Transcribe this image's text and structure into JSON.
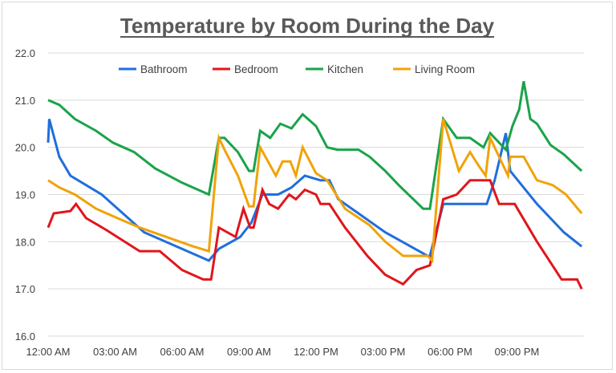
{
  "chart_data": {
    "type": "line",
    "title": "Temperature by Room During the Day",
    "xlabel": "",
    "ylabel": "",
    "ylim": [
      16.0,
      22.0
    ],
    "yticks": [
      "16.0",
      "17.0",
      "18.0",
      "19.0",
      "20.0",
      "21.0",
      "22.0"
    ],
    "xlim": [
      "00:00",
      "24:00"
    ],
    "xticks": [
      "12:00 AM",
      "03:00 AM",
      "06:00 AM",
      "09:00 AM",
      "12:00 PM",
      "03:00 PM",
      "06:00 PM",
      "09:00 PM"
    ],
    "grid": true,
    "legend_position": "top",
    "series": [
      {
        "name": "Bathroom",
        "color": "#1F6FDB",
        "points": [
          [
            "00:00",
            20.1
          ],
          [
            "00:03",
            20.6
          ],
          [
            "00:30",
            19.8
          ],
          [
            "01:00",
            19.4
          ],
          [
            "02:24",
            19.0
          ],
          [
            "04:18",
            18.2
          ],
          [
            "07:12",
            17.6
          ],
          [
            "07:39",
            17.85
          ],
          [
            "08:36",
            18.1
          ],
          [
            "09:06",
            18.4
          ],
          [
            "09:36",
            19.0
          ],
          [
            "10:18",
            19.0
          ],
          [
            "10:54",
            19.15
          ],
          [
            "11:30",
            19.4
          ],
          [
            "12:12",
            19.3
          ],
          [
            "12:36",
            19.3
          ],
          [
            "13:00",
            18.9
          ],
          [
            "13:54",
            18.6
          ],
          [
            "15:06",
            18.2
          ],
          [
            "17:00",
            17.7
          ],
          [
            "17:06",
            17.7
          ],
          [
            "17:42",
            18.8
          ],
          [
            "19:39",
            18.8
          ],
          [
            "20:00",
            19.3
          ],
          [
            "20:30",
            20.3
          ],
          [
            "20:42",
            19.5
          ],
          [
            "21:54",
            18.8
          ],
          [
            "23:06",
            18.2
          ],
          [
            "23:54",
            17.9
          ]
        ]
      },
      {
        "name": "Bedroom",
        "color": "#E0161D",
        "points": [
          [
            "00:00",
            18.3
          ],
          [
            "00:15",
            18.6
          ],
          [
            "01:00",
            18.65
          ],
          [
            "01:15",
            18.8
          ],
          [
            "01:42",
            18.5
          ],
          [
            "02:36",
            18.25
          ],
          [
            "04:06",
            17.8
          ],
          [
            "05:00",
            17.8
          ],
          [
            "06:00",
            17.4
          ],
          [
            "06:57",
            17.2
          ],
          [
            "07:18",
            17.2
          ],
          [
            "07:39",
            18.3
          ],
          [
            "08:24",
            18.1
          ],
          [
            "08:45",
            18.7
          ],
          [
            "09:03",
            18.3
          ],
          [
            "09:12",
            18.3
          ],
          [
            "09:36",
            19.1
          ],
          [
            "09:54",
            18.8
          ],
          [
            "10:18",
            18.7
          ],
          [
            "10:48",
            19.0
          ],
          [
            "11:06",
            18.9
          ],
          [
            "11:30",
            19.1
          ],
          [
            "12:00",
            19.0
          ],
          [
            "12:12",
            18.8
          ],
          [
            "12:36",
            18.8
          ],
          [
            "13:18",
            18.3
          ],
          [
            "14:18",
            17.7
          ],
          [
            "15:06",
            17.3
          ],
          [
            "15:54",
            17.1
          ],
          [
            "16:30",
            17.4
          ],
          [
            "17:06",
            17.5
          ],
          [
            "17:42",
            18.9
          ],
          [
            "18:18",
            19.0
          ],
          [
            "18:54",
            19.3
          ],
          [
            "19:48",
            19.3
          ],
          [
            "20:12",
            18.8
          ],
          [
            "20:54",
            18.8
          ],
          [
            "21:54",
            18.0
          ],
          [
            "23:00",
            17.2
          ],
          [
            "23:42",
            17.2
          ],
          [
            "23:54",
            17.0
          ]
        ]
      },
      {
        "name": "Kitchen",
        "color": "#1AA34A",
        "points": [
          [
            "00:00",
            21.0
          ],
          [
            "00:30",
            20.9
          ],
          [
            "01:12",
            20.6
          ],
          [
            "02:09",
            20.35
          ],
          [
            "02:54",
            20.1
          ],
          [
            "03:51",
            19.9
          ],
          [
            "04:48",
            19.55
          ],
          [
            "06:00",
            19.25
          ],
          [
            "07:12",
            19.0
          ],
          [
            "07:39",
            20.2
          ],
          [
            "07:54",
            20.2
          ],
          [
            "08:30",
            19.9
          ],
          [
            "09:00",
            19.5
          ],
          [
            "09:12",
            19.5
          ],
          [
            "09:30",
            20.35
          ],
          [
            "09:57",
            20.2
          ],
          [
            "10:24",
            20.5
          ],
          [
            "10:54",
            20.4
          ],
          [
            "11:24",
            20.7
          ],
          [
            "12:00",
            20.45
          ],
          [
            "12:30",
            20.0
          ],
          [
            "12:57",
            19.95
          ],
          [
            "13:54",
            19.95
          ],
          [
            "14:24",
            19.8
          ],
          [
            "15:06",
            19.5
          ],
          [
            "15:42",
            19.2
          ],
          [
            "16:48",
            18.7
          ],
          [
            "17:06",
            18.7
          ],
          [
            "17:42",
            20.6
          ],
          [
            "18:18",
            20.2
          ],
          [
            "18:54",
            20.2
          ],
          [
            "19:30",
            20.0
          ],
          [
            "19:48",
            20.3
          ],
          [
            "20:30",
            19.95
          ],
          [
            "20:48",
            20.45
          ],
          [
            "21:06",
            20.8
          ],
          [
            "21:18",
            21.4
          ],
          [
            "21:36",
            20.6
          ],
          [
            "21:54",
            20.5
          ],
          [
            "22:30",
            20.05
          ],
          [
            "23:06",
            19.85
          ],
          [
            "23:54",
            19.5
          ]
        ]
      },
      {
        "name": "Living Room",
        "color": "#F0A30A",
        "points": [
          [
            "00:00",
            19.3
          ],
          [
            "00:30",
            19.15
          ],
          [
            "01:12",
            19.0
          ],
          [
            "02:09",
            18.7
          ],
          [
            "03:06",
            18.5
          ],
          [
            "04:06",
            18.3
          ],
          [
            "05:18",
            18.1
          ],
          [
            "06:30",
            17.9
          ],
          [
            "07:12",
            17.8
          ],
          [
            "07:39",
            20.2
          ],
          [
            "07:54",
            19.95
          ],
          [
            "08:30",
            19.4
          ],
          [
            "09:00",
            18.75
          ],
          [
            "09:12",
            18.75
          ],
          [
            "09:30",
            20.0
          ],
          [
            "10:12",
            19.4
          ],
          [
            "10:30",
            19.7
          ],
          [
            "10:51",
            19.7
          ],
          [
            "11:06",
            19.4
          ],
          [
            "11:24",
            20.0
          ],
          [
            "12:00",
            19.45
          ],
          [
            "12:30",
            19.3
          ],
          [
            "13:18",
            18.7
          ],
          [
            "14:24",
            18.35
          ],
          [
            "15:06",
            18.0
          ],
          [
            "15:54",
            17.7
          ],
          [
            "17:00",
            17.7
          ],
          [
            "17:12",
            17.6
          ],
          [
            "17:42",
            20.6
          ],
          [
            "18:24",
            19.5
          ],
          [
            "18:54",
            19.9
          ],
          [
            "19:18",
            19.6
          ],
          [
            "19:36",
            19.4
          ],
          [
            "19:48",
            20.2
          ],
          [
            "20:12",
            19.8
          ],
          [
            "20:36",
            19.4
          ],
          [
            "20:42",
            19.8
          ],
          [
            "21:18",
            19.8
          ],
          [
            "21:54",
            19.3
          ],
          [
            "22:36",
            19.2
          ],
          [
            "23:12",
            19.0
          ],
          [
            "23:54",
            18.6
          ]
        ]
      }
    ]
  }
}
